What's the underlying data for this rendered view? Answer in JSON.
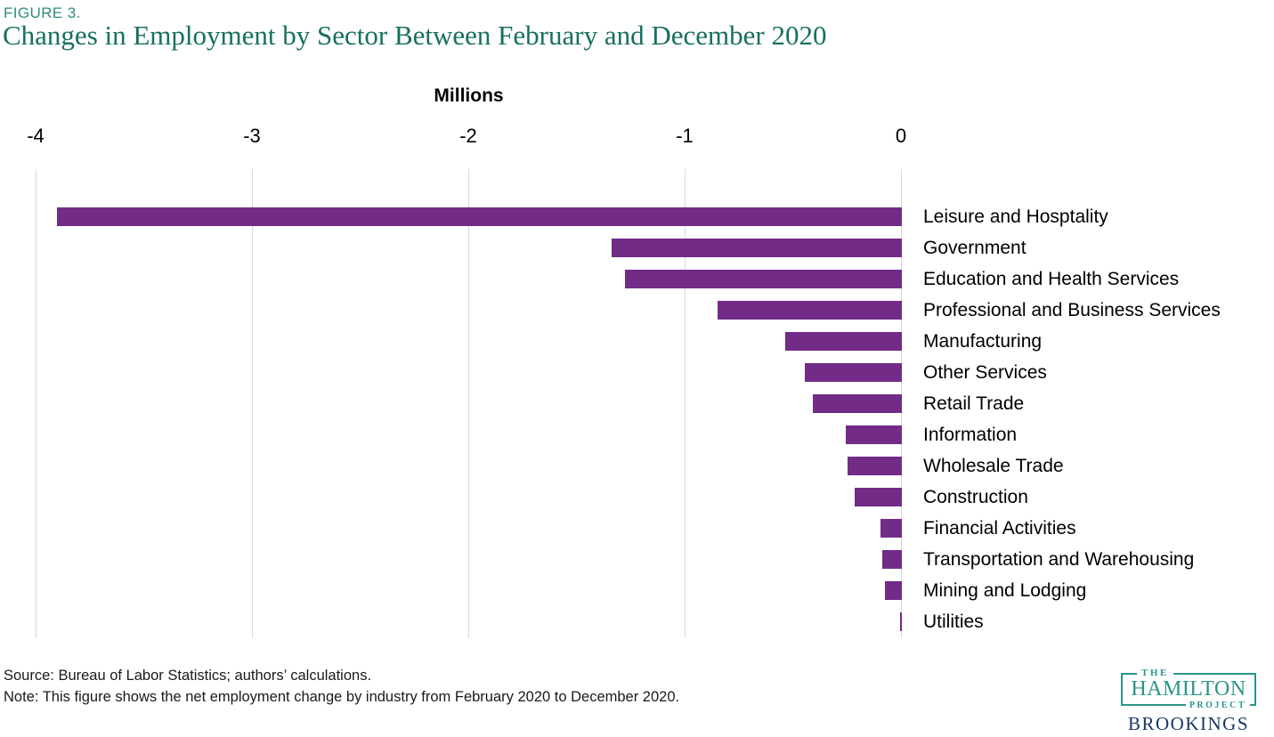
{
  "figure_label": "FIGURE 3.",
  "title": "Changes in Employment by Sector Between February and December 2020",
  "axis": {
    "title": "Millions",
    "ticks": [
      "-4",
      "-3",
      "-2",
      "-1",
      "0"
    ]
  },
  "chart_data": {
    "type": "bar",
    "orientation": "horizontal",
    "title": "Changes in Employment by Sector Between February and December 2020",
    "xlabel": "Millions",
    "ylabel": "",
    "xlim": [
      -4,
      0
    ],
    "grid": true,
    "bar_color": "#722c87",
    "gridline_color": "#d9d9d9",
    "categories": [
      "Leisure and Hosptality",
      "Government",
      "Education and Health Services",
      "Professional and Business Services",
      "Manufacturing",
      "Other Services",
      "Retail Trade",
      "Information",
      "Wholesale Trade",
      "Construction",
      "Financial Activities",
      "Transportation and Warehousing",
      "Mining and Lodging",
      "Utilities"
    ],
    "values": [
      -3.9,
      -1.34,
      -1.28,
      -0.85,
      -0.54,
      -0.45,
      -0.41,
      -0.26,
      -0.25,
      -0.22,
      -0.1,
      -0.09,
      -0.08,
      -0.01
    ]
  },
  "footer": {
    "source": "Source: Bureau of Labor Statistics; authors’ calculations.",
    "note": "Note: This figure shows the net employment change by industry from February 2020 to December 2020."
  },
  "logo": {
    "the": "THE",
    "hamilton": "HAMILTON",
    "project": "PROJECT",
    "brookings": "BROOKINGS"
  },
  "colors": {
    "figure_label_teal": "#2f8c82",
    "title_teal": "#17705f",
    "bar_purple": "#722c87",
    "hamilton_teal": "#2a958a",
    "brookings_navy": "#1c3764"
  }
}
